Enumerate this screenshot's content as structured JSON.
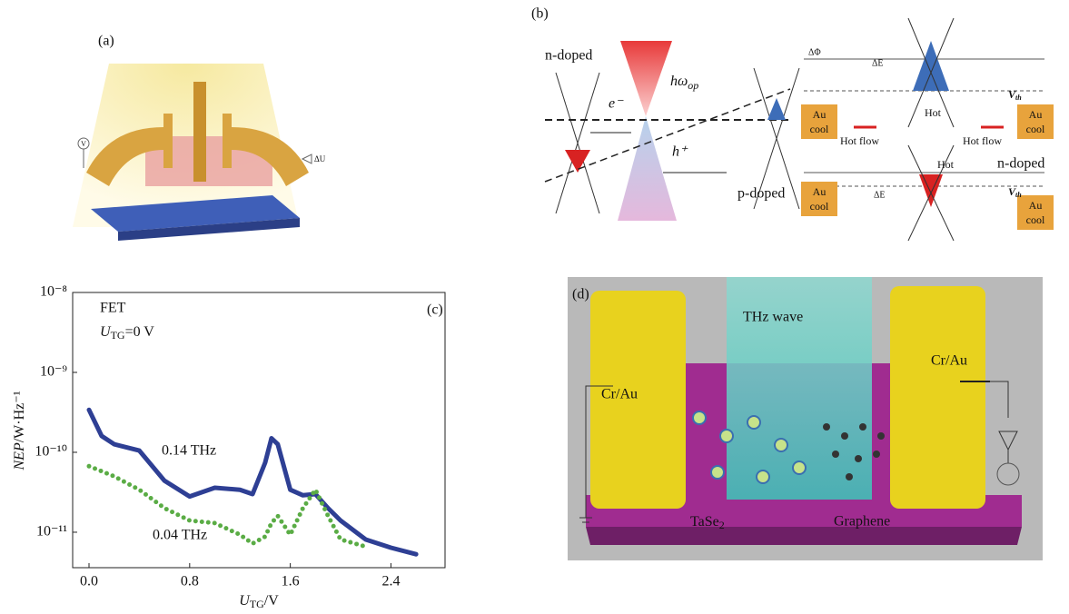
{
  "panels": {
    "a": {
      "label": "(a)",
      "v": "V",
      "du": "ΔU"
    },
    "b": {
      "label": "(b)",
      "n_doped": "n-doped",
      "photon": "hω",
      "photon_sub": "op",
      "electron": "e⁻",
      "hole": "h⁺",
      "p_doped": "p-doped",
      "dphi": "ΔΦ",
      "de_top": "ΔE",
      "vth_top": "V",
      "vth_sub": "th",
      "au_cool": [
        "Au",
        "cool"
      ],
      "hot_top": "Hot",
      "hot_flow": "Hot flow",
      "hot_bottom": "Hot",
      "n_doped_right": "n-doped",
      "de_bottom": "ΔE"
    },
    "d": {
      "label": "(d)",
      "thz": "THz wave",
      "cr_left": "Cr/Au",
      "cr_right": "Cr/Au",
      "tase": "TaSe",
      "tase_sub": "2",
      "graphene": "Graphene"
    }
  },
  "chart_data": {
    "type": "line",
    "label": "(c)",
    "annotations": [
      "FET",
      "0.14 THz",
      "0.04 THz"
    ],
    "condition": [
      "U",
      "TG",
      "=0 V"
    ],
    "x_label": [
      "U",
      "TG",
      "/V"
    ],
    "y_label": [
      "NEP",
      "/W·Hz⁻¹"
    ],
    "x": [
      0,
      0.1,
      0.2,
      0.4,
      0.6,
      0.8,
      1.0,
      1.2,
      1.3,
      1.4,
      1.45,
      1.5,
      1.6,
      1.7,
      1.8,
      1.9,
      2.0,
      2.2,
      2.4,
      2.6
    ],
    "series": [
      {
        "name": "0.14 THz",
        "color": "#2e3f94",
        "values": [
          3.4e-10,
          1.6e-10,
          1.26e-10,
          1.05e-10,
          4.4e-11,
          2.8e-11,
          3.6e-11,
          3.4e-11,
          3e-11,
          7.4e-11,
          1.5e-10,
          1.26e-10,
          3.4e-11,
          2.9e-11,
          3e-11,
          2e-11,
          1.4e-11,
          8.1e-12,
          6.4e-12,
          5.3e-12
        ]
      },
      {
        "name": "0.04 THz",
        "color": "#5aac45",
        "values": [
          6.7e-11,
          5.8e-11,
          5e-11,
          3.4e-11,
          2e-11,
          1.4e-11,
          1.3e-11,
          9.3e-12,
          7.2e-12,
          8.8e-12,
          1.3e-11,
          1.6e-11,
          9.3e-12,
          2e-11,
          3.4e-11,
          1.6e-11,
          8.1e-12,
          6.6e-12,
          null,
          null
        ]
      }
    ],
    "log_y": true,
    "xlim": [
      -0.13,
      2.83
    ],
    "ylim": [
      3.6e-12,
      1e-08
    ],
    "xticks": [
      {
        "value": 0,
        "label": "0.0"
      },
      0.8,
      1.6,
      2.4
    ],
    "yticks": [
      {
        "value": 1e-08,
        "label": "10⁻⁸"
      },
      {
        "value": 1e-09,
        "label": "10⁻⁹"
      },
      {
        "value": 1e-10,
        "label": "10⁻¹⁰"
      },
      {
        "value": 1e-11,
        "label": "10⁻¹¹"
      }
    ]
  }
}
